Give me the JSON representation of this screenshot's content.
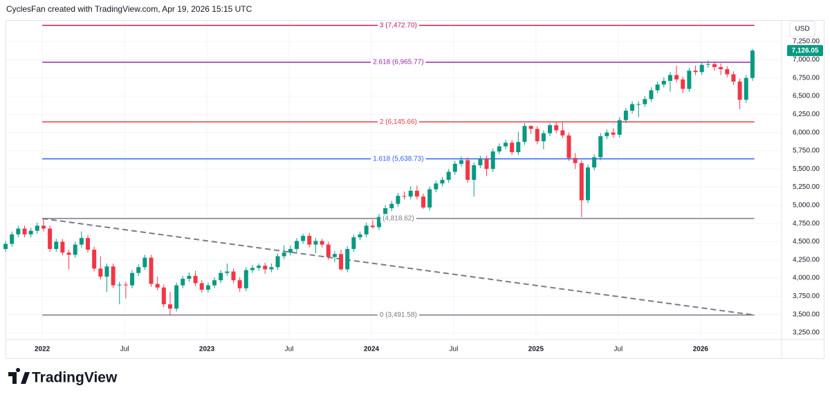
{
  "header": {
    "title": "CyclesFan created with TradingView.com, Apr 19, 2026 15:15 UTC"
  },
  "footer": {
    "brand": "TradingView"
  },
  "chart_data": {
    "type": "candlestick",
    "currency": "USD",
    "up_color": "#089981",
    "down_color": "#f23645",
    "grid": true,
    "xlim": [
      -0.66,
      122.6
    ],
    "ylim": [
      3164,
      7536
    ],
    "xticks": [
      {
        "value": 5.8,
        "label": "2022"
      },
      {
        "value": 18.8,
        "label": "Jul"
      },
      {
        "value": 31.8,
        "label": "2023"
      },
      {
        "value": 44.8,
        "label": "Jul"
      },
      {
        "value": 57.8,
        "label": "2024"
      },
      {
        "value": 70.8,
        "label": "Jul"
      },
      {
        "value": 83.8,
        "label": "2025"
      },
      {
        "value": 96.8,
        "label": "Jul"
      },
      {
        "value": 109.8,
        "label": "2026"
      }
    ],
    "yticks": [
      {
        "value": 3250,
        "label": "3,250.00"
      },
      {
        "value": 3500,
        "label": "3,500.00"
      },
      {
        "value": 3750,
        "label": "3,750.00"
      },
      {
        "value": 4000,
        "label": "4,000.00"
      },
      {
        "value": 4250,
        "label": "4,250.00"
      },
      {
        "value": 4500,
        "label": "4,500.00"
      },
      {
        "value": 4750,
        "label": "4,750.00"
      },
      {
        "value": 5000,
        "label": "5,000.00"
      },
      {
        "value": 5250,
        "label": "5,250.00"
      },
      {
        "value": 5500,
        "label": "5,500.00"
      },
      {
        "value": 5750,
        "label": "5,750.00"
      },
      {
        "value": 6000,
        "label": "6,000.00"
      },
      {
        "value": 6250,
        "label": "6,250.00"
      },
      {
        "value": 6500,
        "label": "6,500.00"
      },
      {
        "value": 6750,
        "label": "6,750.00"
      },
      {
        "value": 7000,
        "label": "7,000.00"
      },
      {
        "value": 7250,
        "label": "7,250.00"
      }
    ],
    "last_price": {
      "value": 7126.05,
      "label": "7,126.05",
      "color": "#089981"
    },
    "fib_x": [
      5.8,
      118.3
    ],
    "fib_levels": [
      {
        "value": 7472.7,
        "label": "3 (7,472.70)",
        "color": "#c2185b"
      },
      {
        "value": 6965.77,
        "label": "2.618 (6,965.77)",
        "color": "#9c27b0"
      },
      {
        "value": 6145.66,
        "label": "2 (6,145.66)",
        "color": "#f23645"
      },
      {
        "value": 5638.73,
        "label": "1.618 (5,638.73)",
        "color": "#2962ff"
      },
      {
        "value": 4818.62,
        "label": "(4,818.62)",
        "color": "#787b86"
      },
      {
        "value": 3491.58,
        "label": "0 (3,491.58)",
        "color": "#787b86"
      }
    ],
    "trendline": {
      "x": [
        5.8,
        118.3
      ],
      "y": [
        4818.62,
        3491.58
      ],
      "color": "#787b86"
    },
    "x": [
      0,
      1,
      2,
      3,
      4,
      5,
      6,
      7,
      8,
      9,
      10,
      11,
      12,
      13,
      14,
      15,
      16,
      17,
      18,
      19,
      20,
      21,
      22,
      23,
      24,
      25,
      26,
      27,
      28,
      29,
      30,
      31,
      32,
      33,
      34,
      35,
      36,
      37,
      38,
      39,
      40,
      41,
      42,
      43,
      44,
      45,
      46,
      47,
      48,
      49,
      50,
      51,
      52,
      53,
      54,
      55,
      56,
      57,
      58,
      59,
      60,
      61,
      62,
      63,
      64,
      65,
      66,
      67,
      68,
      69,
      70,
      71,
      72,
      73,
      74,
      75,
      76,
      77,
      78,
      79,
      80,
      81,
      82,
      83,
      84,
      85,
      86,
      87,
      88,
      89,
      90,
      91,
      92,
      93,
      94,
      95,
      96,
      97,
      98,
      99,
      100,
      101,
      102,
      103,
      104,
      105,
      106,
      107,
      108,
      109,
      110,
      111,
      112,
      113,
      114,
      115,
      116,
      117,
      118
    ],
    "ohlc": [
      [
        4400,
        4510,
        4360,
        4470
      ],
      [
        4470,
        4640,
        4430,
        4600
      ],
      [
        4600,
        4720,
        4560,
        4680
      ],
      [
        4680,
        4720,
        4560,
        4600
      ],
      [
        4600,
        4690,
        4560,
        4650
      ],
      [
        4650,
        4760,
        4610,
        4720
      ],
      [
        4720,
        4818,
        4640,
        4680
      ],
      [
        4680,
        4720,
        4360,
        4400
      ],
      [
        4400,
        4540,
        4360,
        4500
      ],
      [
        4500,
        4540,
        4310,
        4350
      ],
      [
        4350,
        4390,
        4120,
        4320
      ],
      [
        4320,
        4500,
        4280,
        4460
      ],
      [
        4460,
        4640,
        4420,
        4550
      ],
      [
        4550,
        4590,
        4350,
        4390
      ],
      [
        4390,
        4430,
        4090,
        4130
      ],
      [
        4130,
        4300,
        3980,
        4020
      ],
      [
        4020,
        4200,
        3810,
        4160
      ],
      [
        4160,
        4200,
        3860,
        3900
      ],
      [
        3900,
        3950,
        3640,
        3910
      ],
      [
        3910,
        3950,
        3720,
        3900
      ],
      [
        3900,
        4110,
        3860,
        4070
      ],
      [
        4070,
        4190,
        4030,
        4150
      ],
      [
        4150,
        4320,
        4110,
        4280
      ],
      [
        4280,
        4320,
        3880,
        3920
      ],
      [
        3920,
        4020,
        3830,
        3870
      ],
      [
        3870,
        3910,
        3600,
        3640
      ],
      [
        3640,
        3810,
        3491,
        3580
      ],
      [
        3580,
        3940,
        3540,
        3900
      ],
      [
        3900,
        4030,
        3860,
        3990
      ],
      [
        3990,
        4080,
        3950,
        4030
      ],
      [
        4030,
        4100,
        3890,
        3930
      ],
      [
        3930,
        3970,
        3800,
        3840
      ],
      [
        3840,
        3940,
        3800,
        3900
      ],
      [
        3900,
        4010,
        3860,
        3970
      ],
      [
        3970,
        4110,
        3930,
        4070
      ],
      [
        4070,
        4200,
        4030,
        4090
      ],
      [
        4090,
        4130,
        3930,
        3970
      ],
      [
        3970,
        4010,
        3810,
        3860
      ],
      [
        3860,
        4150,
        3820,
        4110
      ],
      [
        4110,
        4180,
        4070,
        4140
      ],
      [
        4140,
        4200,
        4100,
        4170
      ],
      [
        4170,
        4210,
        4060,
        4120
      ],
      [
        4120,
        4200,
        4080,
        4150
      ],
      [
        4150,
        4340,
        4110,
        4300
      ],
      [
        4300,
        4450,
        4260,
        4350
      ],
      [
        4350,
        4450,
        4310,
        4400
      ],
      [
        4400,
        4550,
        4360,
        4510
      ],
      [
        4510,
        4610,
        4470,
        4580
      ],
      [
        4580,
        4620,
        4420,
        4460
      ],
      [
        4460,
        4550,
        4340,
        4510
      ],
      [
        4510,
        4540,
        4420,
        4460
      ],
      [
        4460,
        4500,
        4250,
        4290
      ],
      [
        4290,
        4370,
        4220,
        4330
      ],
      [
        4330,
        4390,
        4100,
        4120
      ],
      [
        4120,
        4440,
        4080,
        4400
      ],
      [
        4400,
        4600,
        4360,
        4560
      ],
      [
        4560,
        4640,
        4520,
        4600
      ],
      [
        4600,
        4760,
        4560,
        4720
      ],
      [
        4720,
        4800,
        4680,
        4700
      ],
      [
        4700,
        4880,
        4660,
        4840
      ],
      [
        4840,
        5000,
        4800,
        4960
      ],
      [
        4960,
        5060,
        4920,
        5020
      ],
      [
        5020,
        5170,
        4980,
        5130
      ],
      [
        5130,
        5190,
        5080,
        5120
      ],
      [
        5120,
        5260,
        5080,
        5200
      ],
      [
        5200,
        5270,
        5080,
        5120
      ],
      [
        5120,
        5160,
        4950,
        4970
      ],
      [
        4970,
        5260,
        4930,
        5220
      ],
      [
        5220,
        5340,
        5180,
        5300
      ],
      [
        5300,
        5390,
        5260,
        5350
      ],
      [
        5350,
        5500,
        5310,
        5460
      ],
      [
        5460,
        5610,
        5420,
        5570
      ],
      [
        5570,
        5670,
        5530,
        5620
      ],
      [
        5620,
        5660,
        5310,
        5350
      ],
      [
        5350,
        5590,
        5120,
        5550
      ],
      [
        5550,
        5680,
        5510,
        5640
      ],
      [
        5640,
        5680,
        5400,
        5500
      ],
      [
        5500,
        5780,
        5460,
        5740
      ],
      [
        5740,
        5850,
        5700,
        5810
      ],
      [
        5810,
        5900,
        5770,
        5860
      ],
      [
        5860,
        5900,
        5690,
        5730
      ],
      [
        5730,
        6010,
        5690,
        5870
      ],
      [
        5870,
        6130,
        5830,
        6090
      ],
      [
        6090,
        6100,
        5980,
        6050
      ],
      [
        6050,
        6090,
        5840,
        5880
      ],
      [
        5880,
        6030,
        5770,
        5990
      ],
      [
        5990,
        6130,
        5950,
        6100
      ],
      [
        6100,
        6150,
        5990,
        6030
      ],
      [
        6030,
        6140,
        5920,
        5960
      ],
      [
        5960,
        6000,
        5610,
        5650
      ],
      [
        5650,
        5720,
        5500,
        5580
      ],
      [
        5580,
        5620,
        4835,
        5070
      ],
      [
        5070,
        5560,
        5030,
        5520
      ],
      [
        5520,
        5700,
        5480,
        5660
      ],
      [
        5660,
        5990,
        5620,
        5950
      ],
      [
        5950,
        6040,
        5910,
        6000
      ],
      [
        6000,
        6060,
        5930,
        5970
      ],
      [
        5970,
        6210,
        5930,
        6170
      ],
      [
        6170,
        6340,
        6130,
        6300
      ],
      [
        6300,
        6430,
        6260,
        6390
      ],
      [
        6390,
        6430,
        6210,
        6390
      ],
      [
        6390,
        6500,
        6350,
        6460
      ],
      [
        6460,
        6620,
        6420,
        6580
      ],
      [
        6580,
        6700,
        6540,
        6660
      ],
      [
        6660,
        6760,
        6620,
        6710
      ],
      [
        6710,
        6830,
        6560,
        6790
      ],
      [
        6790,
        6920,
        6690,
        6730
      ],
      [
        6730,
        6770,
        6540,
        6600
      ],
      [
        6600,
        6890,
        6560,
        6850
      ],
      [
        6850,
        6920,
        6790,
        6830
      ],
      [
        6830,
        6970,
        6790,
        6930
      ],
      [
        6930,
        6990,
        6890,
        6940
      ],
      [
        6940,
        6980,
        6850,
        6900
      ],
      [
        6900,
        6950,
        6790,
        6870
      ],
      [
        6870,
        6910,
        6760,
        6800
      ],
      [
        6800,
        6840,
        6650,
        6700
      ],
      [
        6700,
        6740,
        6320,
        6450
      ],
      [
        6450,
        6790,
        6410,
        6750
      ],
      [
        6750,
        7150,
        6710,
        7126.05
      ]
    ]
  }
}
